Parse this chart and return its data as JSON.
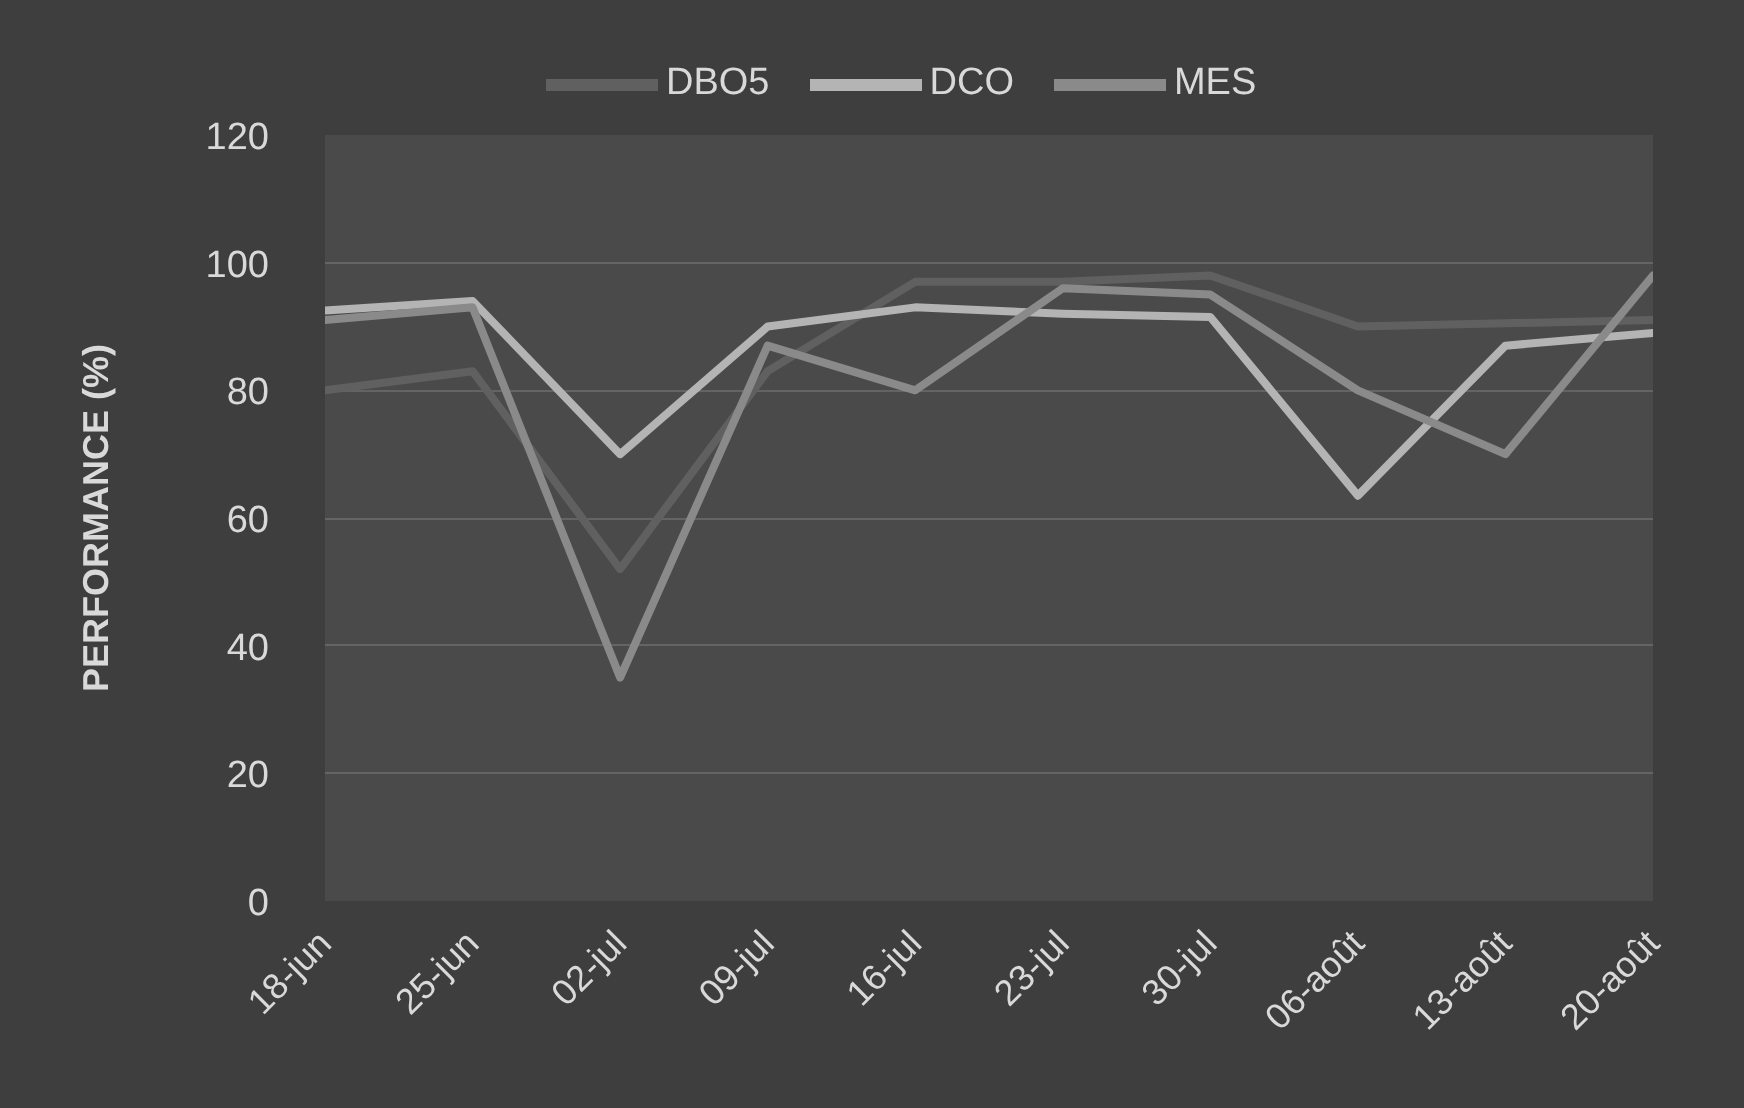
{
  "chart_data": {
    "type": "line",
    "ylabel": "PERFORMANCE (%)",
    "categories": [
      "18-jun",
      "25-jun",
      "02-jul",
      "09-jul",
      "16-jul",
      "23-jul",
      "30-jul",
      "06-août",
      "13-août",
      "20-août"
    ],
    "ylim": [
      0,
      120
    ],
    "yticks": [
      0,
      20,
      40,
      60,
      80,
      100,
      120
    ],
    "grid": "y",
    "legend": "top",
    "line_style": "solid",
    "series": [
      {
        "name": "DBO5",
        "color": "#606060",
        "values": [
          80,
          83,
          52,
          83,
          97,
          97,
          98,
          90,
          90.5,
          91
        ]
      },
      {
        "name": "DCO",
        "color": "#b4b4b4",
        "values": [
          92.5,
          94,
          70,
          90,
          93,
          92,
          91.5,
          63.5,
          87,
          89
        ]
      },
      {
        "name": "MES",
        "color": "#8a8a8a",
        "values": [
          91,
          93,
          35,
          87,
          80,
          96,
          95,
          80,
          70,
          98
        ]
      }
    ]
  }
}
